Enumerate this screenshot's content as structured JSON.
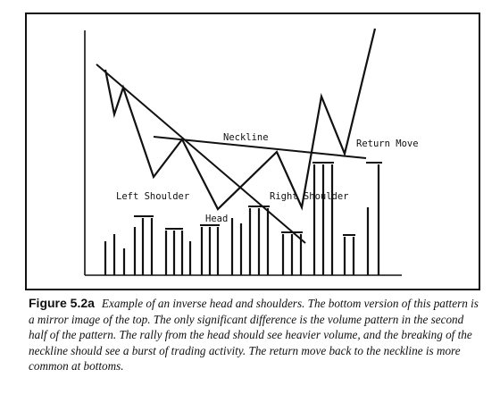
{
  "labels": {
    "neckline": "Neckline",
    "return_move": "Return Move",
    "left_shoulder": "Left Shoulder",
    "head": "Head",
    "right_shoulder": "Right Shoulder"
  },
  "caption": {
    "figure_label": "Figure 5.2a",
    "text": "Example of an inverse head and shoulders. The bottom version of this pattern is a mirror image of the top. The only significant difference is the volume pattern in the second half of the pattern. The rally from the head should see heavier volume, and the breaking of the neckline should see a burst of trading activity. The return move back to the neckline is more common at bottoms."
  },
  "colors": {
    "ink": "#111111",
    "background": "#ffffff"
  }
}
